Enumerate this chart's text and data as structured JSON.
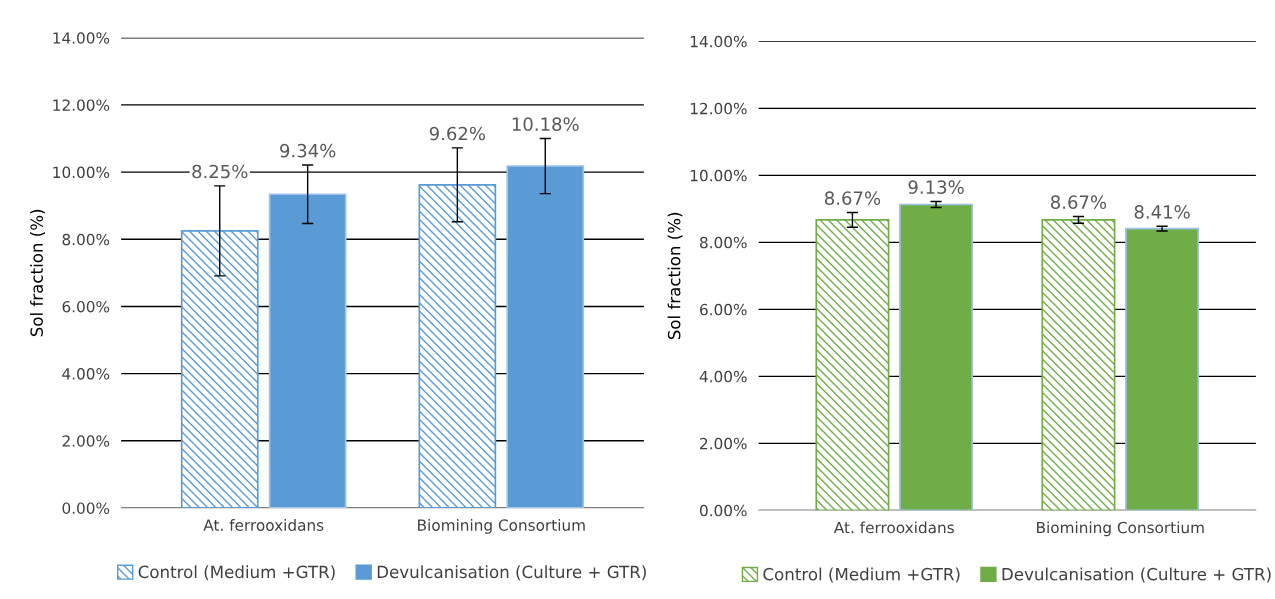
{
  "chart_data": [
    {
      "type": "bar",
      "categories": [
        "At. ferrooxidans",
        "Biomining Consortium"
      ],
      "ylabel": "Sol fraction (%)",
      "ylim": [
        0,
        14
      ],
      "yticks": [
        {
          "value": 0,
          "label": "0.00%"
        },
        {
          "value": 2,
          "label": "2.00%"
        },
        {
          "value": 4,
          "label": "4.00%"
        },
        {
          "value": 6,
          "label": "6.00%"
        },
        {
          "value": 8,
          "label": "8.00%"
        },
        {
          "value": 10,
          "label": "10.00%"
        },
        {
          "value": 12,
          "label": "12.00%"
        },
        {
          "value": 14,
          "label": "14.00%"
        }
      ],
      "grid": "y",
      "legend": "bottom",
      "series": [
        {
          "name": "Control (Medium +GTR)",
          "color": "#5b9bd5",
          "values": [
            8.25,
            9.62
          ],
          "errors": [
            1.34,
            1.1
          ],
          "value_labels": [
            "8.25%",
            "9.62%"
          ]
        },
        {
          "name": "Devulcanisation (Culture + GTR)",
          "color": "#5b9bd5",
          "values": [
            9.34,
            10.18
          ],
          "errors": [
            0.87,
            0.82
          ],
          "value_labels": [
            "9.34%",
            "10.18%"
          ]
        }
      ]
    },
    {
      "type": "bar",
      "categories": [
        "At. ferrooxidans",
        "Biomining Consortium"
      ],
      "ylabel": "Sol fraction (%)",
      "ylim": [
        0,
        14
      ],
      "yticks": [
        {
          "value": 0,
          "label": "0.00%"
        },
        {
          "value": 2,
          "label": "2.00%"
        },
        {
          "value": 4,
          "label": "4.00%"
        },
        {
          "value": 6,
          "label": "6.00%"
        },
        {
          "value": 8,
          "label": "8.00%"
        },
        {
          "value": 10,
          "label": "10.00%"
        },
        {
          "value": 12,
          "label": "12.00%"
        },
        {
          "value": 14,
          "label": "14.00%"
        }
      ],
      "grid": "y",
      "legend": "bottom",
      "series": [
        {
          "name": "Control (Medium +GTR)",
          "color": "#70ad47",
          "values": [
            8.67,
            8.67
          ],
          "errors": [
            0.22,
            0.1
          ],
          "value_labels": [
            "8.67%",
            "8.67%"
          ]
        },
        {
          "name": "Devulcanisation (Culture + GTR)",
          "color": "#70ad47",
          "values": [
            9.13,
            8.41
          ],
          "errors": [
            0.09,
            0.07
          ],
          "value_labels": [
            "9.13%",
            "8.41%"
          ]
        }
      ]
    }
  ]
}
